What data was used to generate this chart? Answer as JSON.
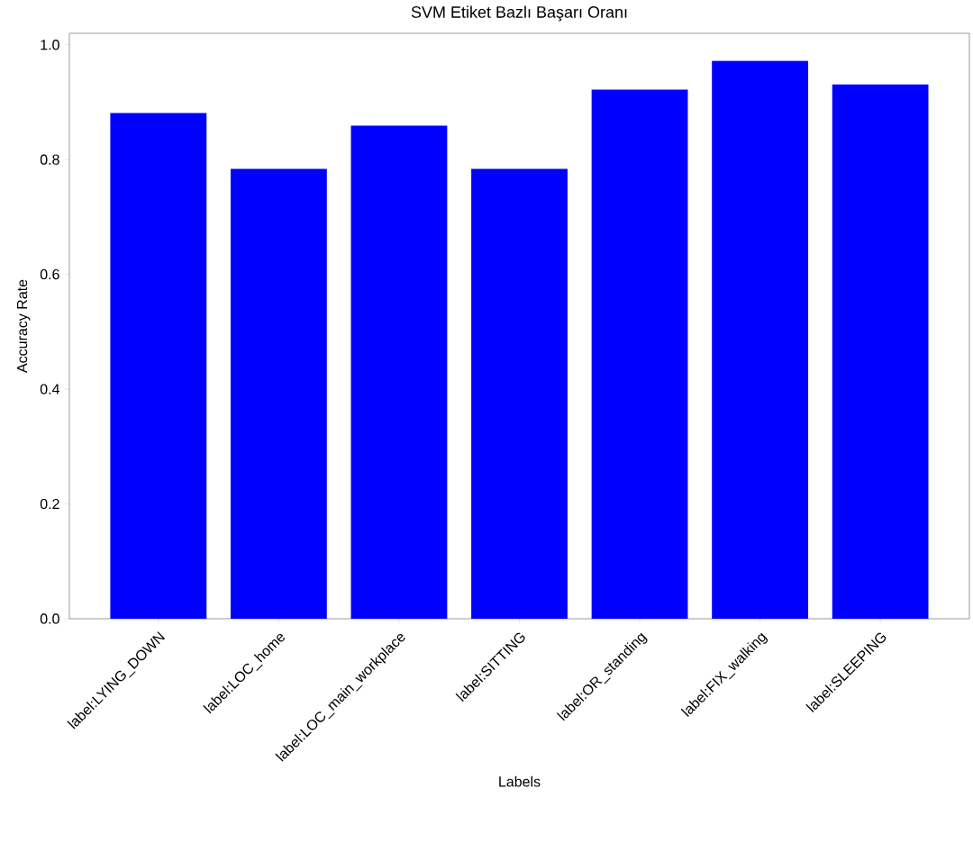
{
  "chart_data": {
    "type": "bar",
    "title": "SVM Etiket Bazlı Başarı Oranı",
    "xlabel": "Labels",
    "ylabel": "Accuracy Rate",
    "categories": [
      "label:LYING_DOWN",
      "label:LOC_home",
      "label:LOC_main_workplace",
      "label:SITTING",
      "label:OR_standing",
      "label:FIX_walking",
      "label:SLEEPING"
    ],
    "values": [
      0.881,
      0.784,
      0.859,
      0.784,
      0.922,
      0.972,
      0.931
    ],
    "color": "#0000ff",
    "ylim": [
      0,
      1.02
    ],
    "yticks": [
      {
        "value": 0,
        "label": "0.0"
      },
      {
        "value": 0.2,
        "label": "0.2"
      },
      {
        "value": 0.4,
        "label": "0.4"
      },
      {
        "value": 0.6,
        "label": "0.6"
      },
      {
        "value": 0.8,
        "label": "0.8"
      },
      {
        "value": 1.0,
        "label": "1.0"
      }
    ]
  }
}
